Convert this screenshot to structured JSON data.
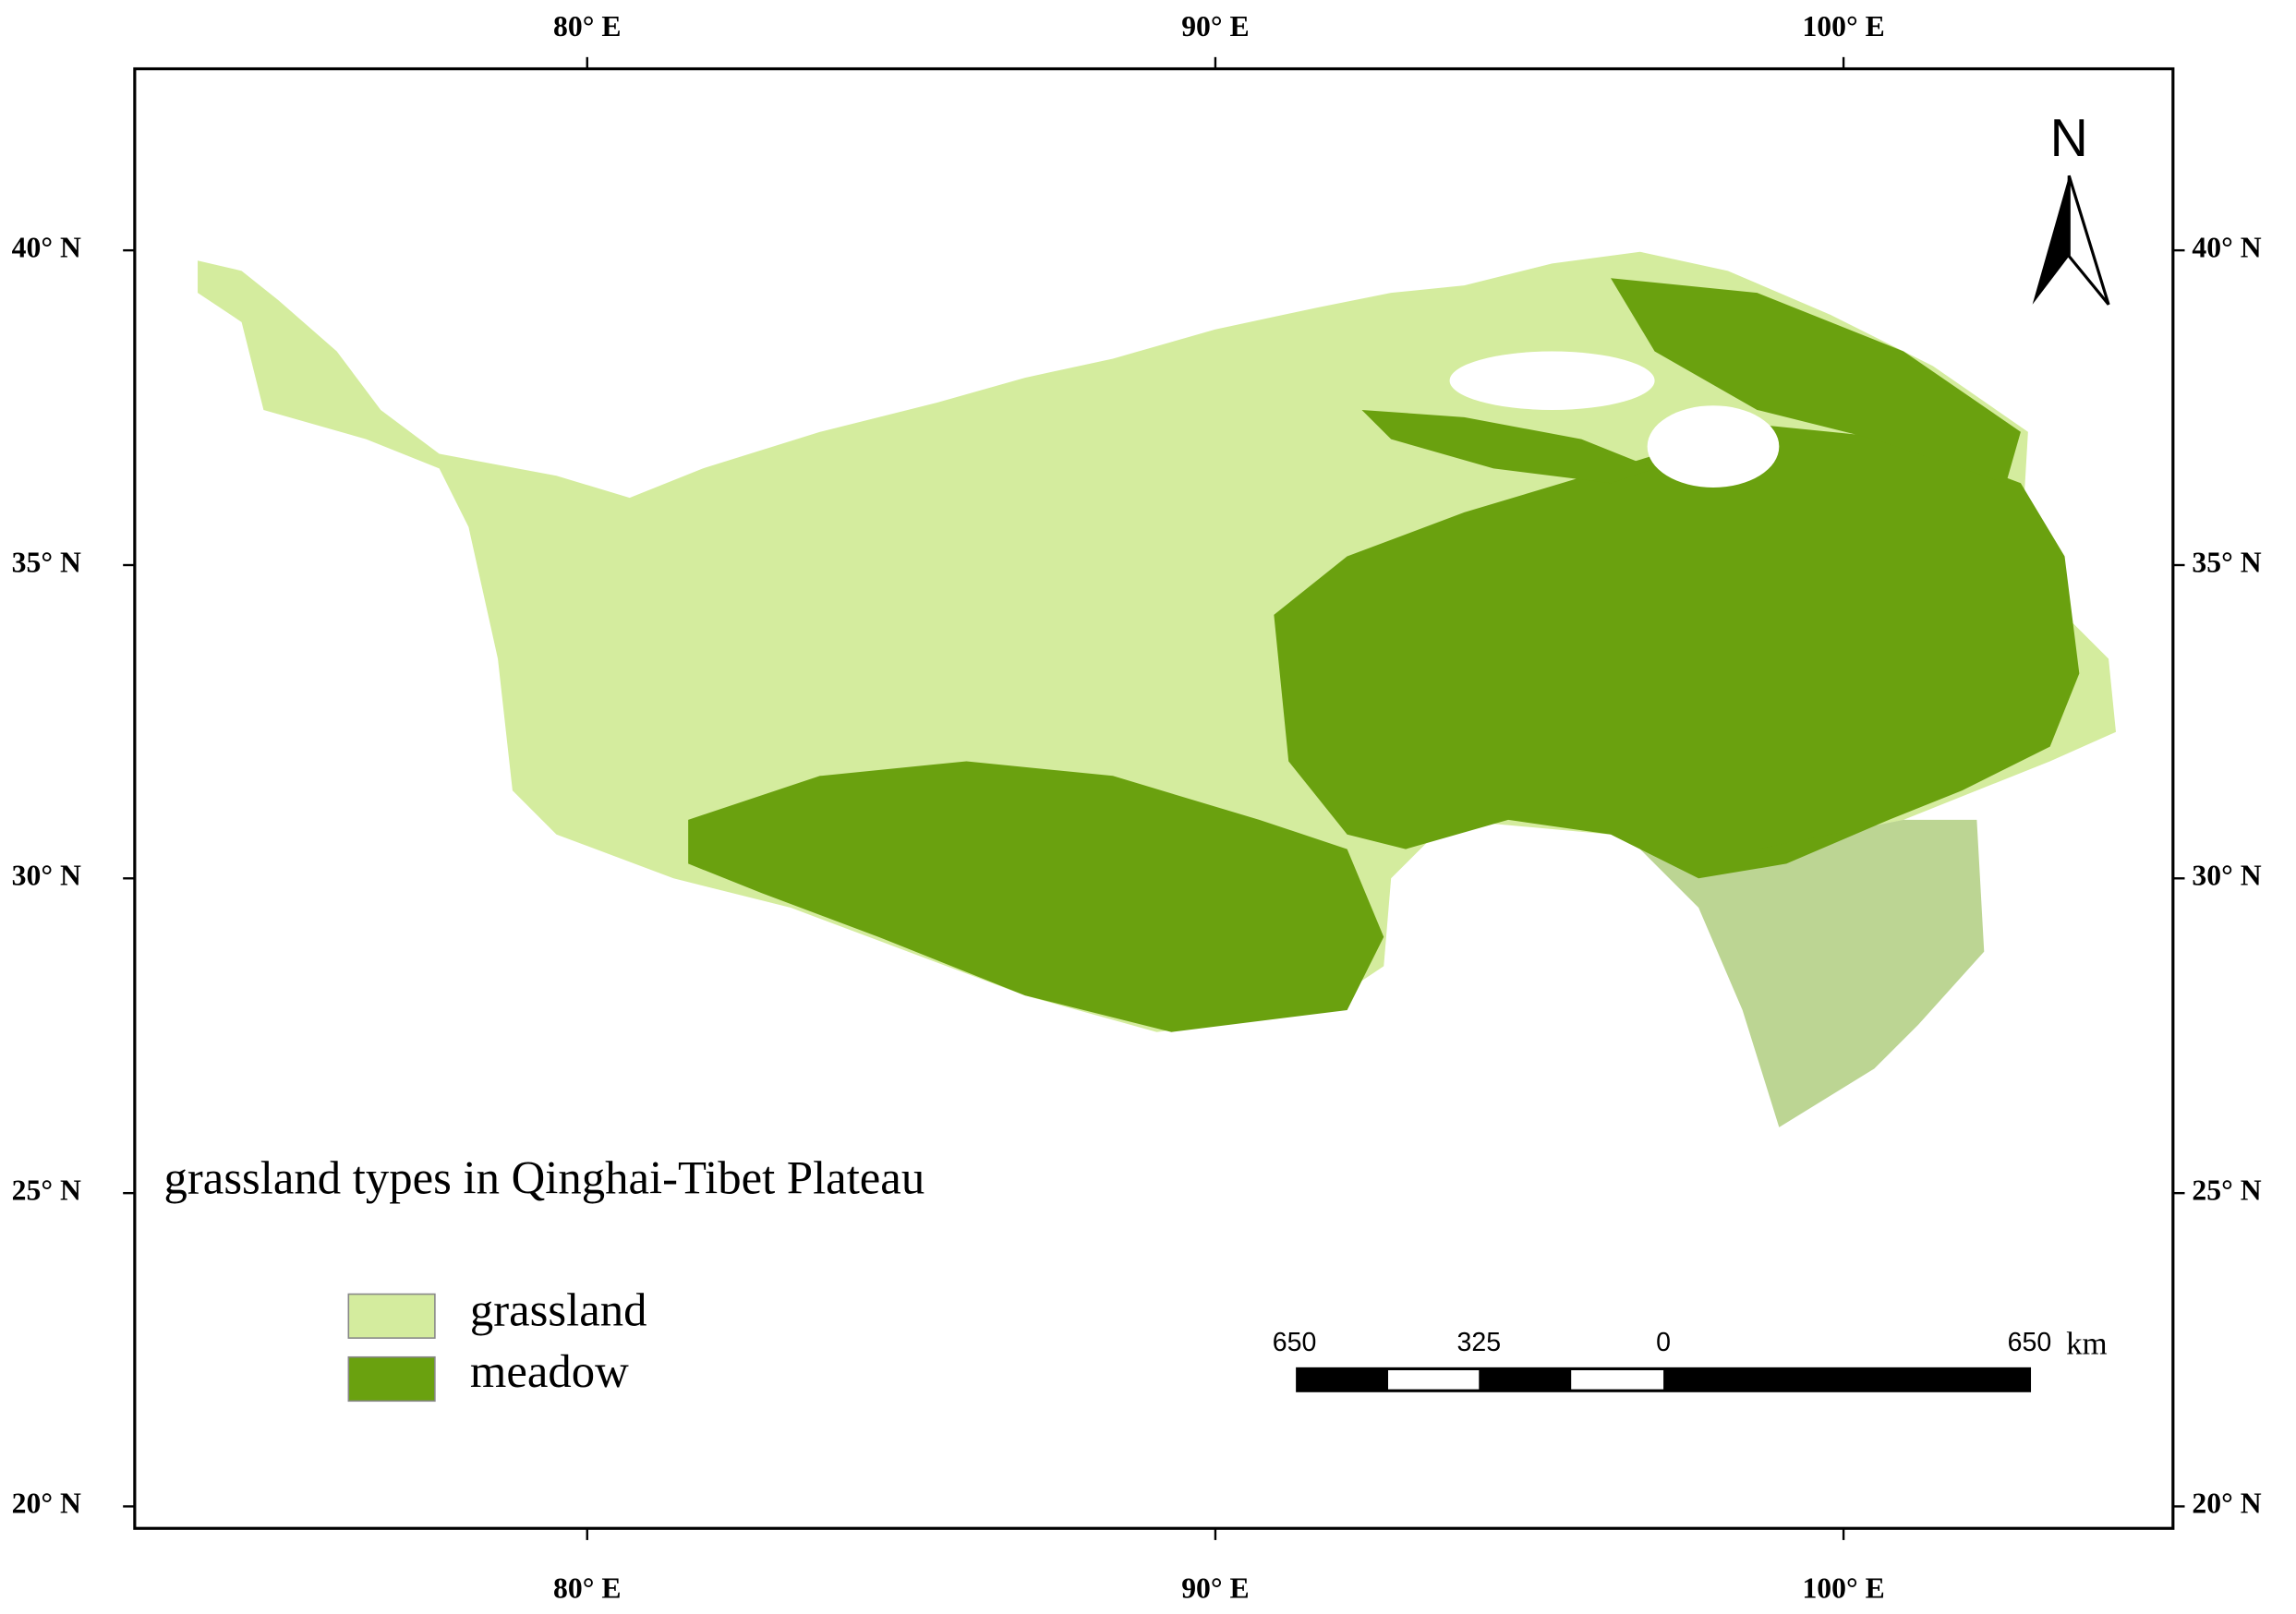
{
  "map": {
    "title": "grassland types in Qinghai-Tibet Plateau",
    "north": "N",
    "longitude_labels": [
      "80° E",
      "90° E",
      "100° E"
    ],
    "latitude_labels": [
      "40° N",
      "35° N",
      "30° N",
      "25° N",
      "20° N"
    ],
    "legend": [
      "grassland",
      "meadow"
    ],
    "scale_bar": {
      "labels": [
        "650",
        "325",
        "0",
        "650"
      ],
      "unit": "km"
    }
  }
}
